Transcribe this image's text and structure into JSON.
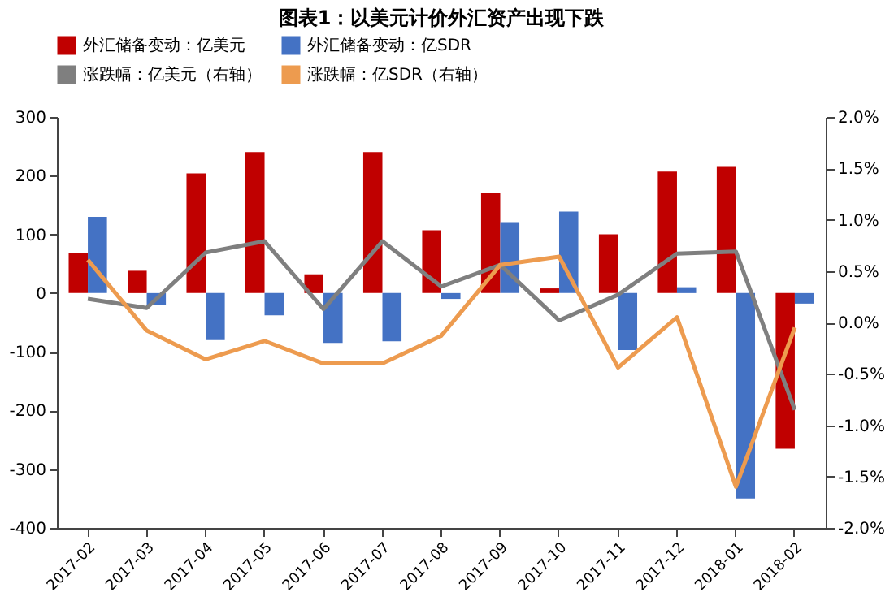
{
  "chart_data": {
    "type": "bar",
    "title": "图表1：以美元计价外汇资产出现下跌",
    "categories": [
      "2017-02",
      "2017-03",
      "2017-04",
      "2017-05",
      "2017-06",
      "2017-07",
      "2017-08",
      "2017-09",
      "2017-10",
      "2017-11",
      "2017-12",
      "2018-01",
      "2018-02"
    ],
    "series": [
      {
        "name": "外汇储备变动：亿美元",
        "color": "#c00000",
        "values": [
          69,
          38,
          204,
          240,
          32,
          240,
          107,
          170,
          8,
          100,
          207,
          215,
          -265
        ]
      },
      {
        "name": "外汇储备变动：亿SDR",
        "color": "#4472c4",
        "values": [
          130,
          -20,
          -80,
          -38,
          -85,
          -82,
          -10,
          121,
          139,
          -97,
          10,
          -350,
          -18
        ]
      },
      {
        "name": "涨跌幅：亿美元（右轴）",
        "color": "#7f7f7f",
        "type": "line",
        "axis": "y2",
        "values": [
          0.23,
          0.14,
          0.68,
          0.79,
          0.13,
          0.79,
          0.35,
          0.56,
          0.02,
          0.27,
          0.67,
          0.69,
          -0.85
        ]
      },
      {
        "name": "涨跌幅：亿SDR（右轴）",
        "color": "#ed9b4f",
        "type": "line",
        "axis": "y2",
        "values": [
          0.61,
          -0.08,
          -0.36,
          -0.18,
          -0.4,
          -0.4,
          -0.13,
          0.56,
          0.64,
          -0.44,
          0.05,
          -1.6,
          -0.05
        ]
      }
    ],
    "ylim": [
      -400,
      300
    ],
    "yticks": [
      -400,
      -300,
      -200,
      -100,
      0,
      100,
      200,
      300
    ],
    "y2lim": [
      -2.0,
      2.0
    ],
    "y2ticks": [
      {
        "value": -2.0,
        "label": "-2.0%"
      },
      {
        "value": -1.5,
        "label": "-1.5%"
      },
      {
        "value": -1.0,
        "label": "-1.0%"
      },
      {
        "value": -0.5,
        "label": "-0.5%"
      },
      {
        "value": 0.0,
        "label": "0.0%"
      },
      {
        "value": 0.5,
        "label": "0.5%"
      },
      {
        "value": 1.0,
        "label": "1.0%"
      },
      {
        "value": 1.5,
        "label": "1.5%"
      },
      {
        "value": 2.0,
        "label": "2.0%"
      }
    ],
    "grid": false,
    "legend": "top",
    "marker": "none",
    "line_style": "solid"
  }
}
